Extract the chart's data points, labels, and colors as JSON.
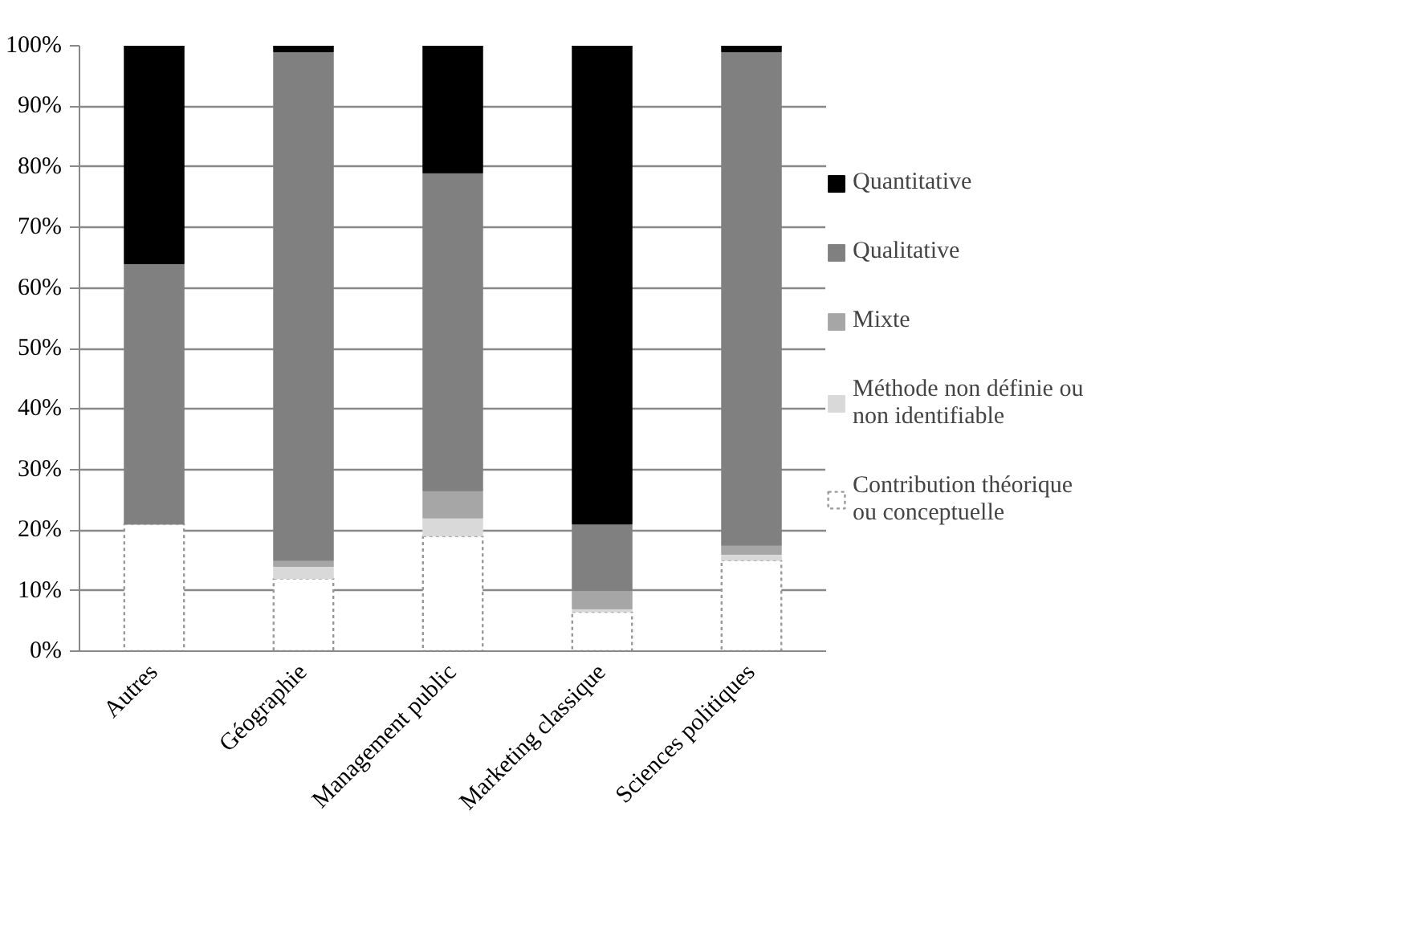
{
  "chart_data": {
    "type": "bar",
    "stacked": true,
    "categories": [
      "Autres",
      "Géographie",
      "Management public",
      "Marketing classique",
      "Sciences politiques"
    ],
    "series": [
      {
        "name": "Contribution théorique ou conceptuelle",
        "color": "#ffffff",
        "values": [
          21,
          12,
          19,
          6.5,
          15
        ]
      },
      {
        "name": "Méthode non définie ou non identifiable",
        "color": "#d9d9d9",
        "values": [
          0,
          2,
          3,
          0.5,
          1
        ]
      },
      {
        "name": "Mixte",
        "color": "#a6a6a6",
        "values": [
          0,
          1,
          4.5,
          3,
          1.5
        ]
      },
      {
        "name": "Qualitative",
        "color": "#808080",
        "values": [
          43,
          84,
          52.5,
          11,
          81.5
        ]
      },
      {
        "name": "Quantitative",
        "color": "#000000",
        "values": [
          36,
          1,
          21,
          79,
          1
        ]
      }
    ],
    "ylim": [
      0,
      100
    ],
    "yticks": [
      {
        "value": 0,
        "label": "0%"
      },
      {
        "value": 10,
        "label": "10%"
      },
      {
        "value": 20,
        "label": "20%"
      },
      {
        "value": 30,
        "label": "30%"
      },
      {
        "value": 40,
        "label": "40%"
      },
      {
        "value": 50,
        "label": "50%"
      },
      {
        "value": 60,
        "label": "60%"
      },
      {
        "value": 70,
        "label": "70%"
      },
      {
        "value": 80,
        "label": "80%"
      },
      {
        "value": 90,
        "label": "90%"
      },
      {
        "value": 100,
        "label": "100%"
      }
    ],
    "grid": "y",
    "legend": "right"
  }
}
